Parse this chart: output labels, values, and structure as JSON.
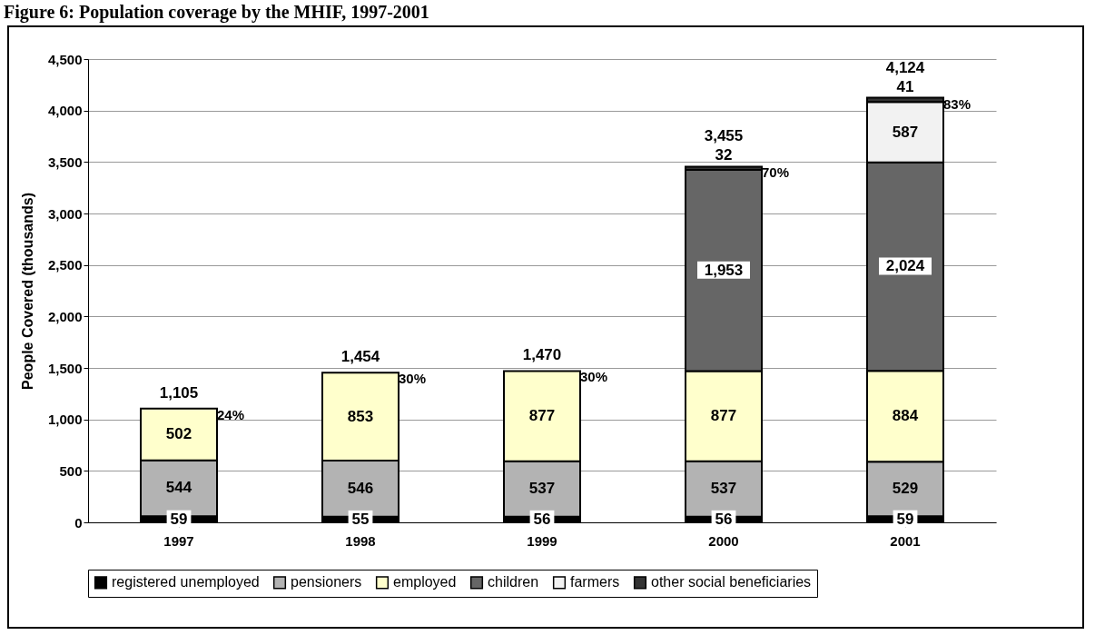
{
  "chart_data": {
    "type": "bar",
    "title": "Figure 6: Population coverage by the MHIF, 1997-2001",
    "ylabel": "People Covered (thousands)",
    "categories": [
      "1997",
      "1998",
      "1999",
      "2000",
      "2001"
    ],
    "stacked": true,
    "grid": "y",
    "legend": "bottom",
    "ylim": [
      0,
      4500
    ],
    "yticks": [
      {
        "value": 0,
        "label": "0"
      },
      {
        "value": 500,
        "label": "500"
      },
      {
        "value": 1000,
        "label": "1,000"
      },
      {
        "value": 1500,
        "label": "1,500"
      },
      {
        "value": 2000,
        "label": "2,000"
      },
      {
        "value": 2500,
        "label": "2,500"
      },
      {
        "value": 3000,
        "label": "3,000"
      },
      {
        "value": 3500,
        "label": "3,500"
      },
      {
        "value": 4000,
        "label": "4,000"
      },
      {
        "value": 4500,
        "label": "4,500"
      }
    ],
    "series": [
      {
        "name": "registered unemployed",
        "color": "#000000",
        "values": [
          59,
          55,
          56,
          56,
          59
        ],
        "value_labels": [
          "59",
          "55",
          "56",
          "56",
          "59"
        ]
      },
      {
        "name": "pensioners",
        "color": "#b3b3b3",
        "values": [
          544,
          546,
          537,
          537,
          529
        ],
        "value_labels": [
          "544",
          "546",
          "537",
          "537",
          "529"
        ]
      },
      {
        "name": "employed",
        "color": "#ffffcc",
        "values": [
          502,
          853,
          877,
          877,
          884
        ],
        "value_labels": [
          "502",
          "853",
          "877",
          "877",
          "884"
        ]
      },
      {
        "name": "children",
        "color": "#666666",
        "values": [
          null,
          null,
          null,
          1953,
          2024
        ],
        "value_labels": [
          null,
          null,
          null,
          "1,953",
          "2,024"
        ]
      },
      {
        "name": "farmers",
        "color": "#f2f2f2",
        "values": [
          null,
          null,
          null,
          null,
          587
        ],
        "value_labels": [
          null,
          null,
          null,
          null,
          "587"
        ]
      },
      {
        "name": "other social beneficiaries",
        "color": "#333333",
        "values": [
          null,
          null,
          null,
          32,
          41
        ],
        "value_labels": [
          null,
          null,
          null,
          "32",
          "41"
        ]
      }
    ],
    "totals": [
      "1,105",
      "1,454",
      "1,470",
      "3,455",
      "4,124"
    ],
    "annotations": [
      {
        "text": "24%",
        "x": "1997",
        "y": 1105
      },
      {
        "text": "30%",
        "x": "1998",
        "y": 1454
      },
      {
        "text": "30%",
        "x": "1999",
        "y": 1470
      },
      {
        "text": "70%",
        "x": "2000",
        "y": 3455
      },
      {
        "text": "83%",
        "x": "2001",
        "y": 4124
      }
    ]
  }
}
